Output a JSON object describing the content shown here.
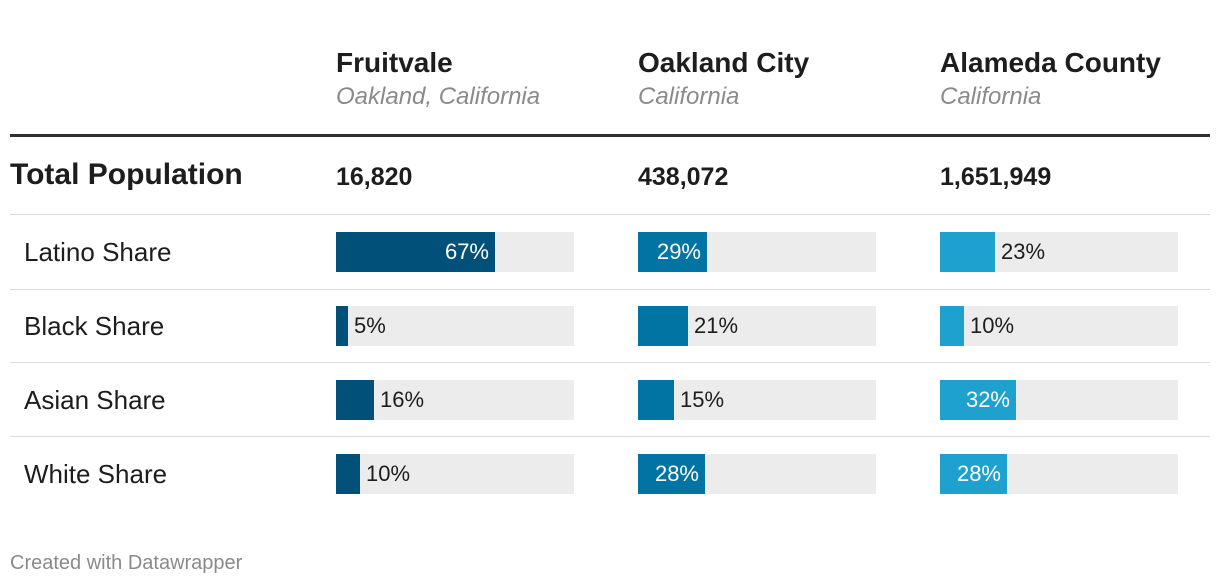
{
  "colors": {
    "fruitvale": "#00507a",
    "oakland": "#0274a4",
    "alameda": "#1fa1cf",
    "track": "#ececec"
  },
  "columns": [
    {
      "name": "Fruitvale",
      "sub": "Oakland, California",
      "population": "16,820"
    },
    {
      "name": "Oakland City",
      "sub": "California",
      "population": "438,072"
    },
    {
      "name": "Alameda County",
      "sub": "California",
      "population": "1,651,949"
    }
  ],
  "total_label": "Total Population",
  "footer": "Created with Datawrapper",
  "chart_data": {
    "type": "table",
    "title": "",
    "x_range": [
      0,
      100
    ],
    "unit": "%",
    "categories": [
      "Latino Share",
      "Black Share",
      "Asian Share",
      "White Share"
    ],
    "series": [
      {
        "name": "Fruitvale",
        "values": [
          67,
          5,
          16,
          10
        ],
        "labels": [
          "67%",
          "5%",
          "16%",
          "10%"
        ]
      },
      {
        "name": "Oakland City",
        "values": [
          29,
          21,
          15,
          28
        ],
        "labels": [
          "29%",
          "21%",
          "15%",
          "28%"
        ]
      },
      {
        "name": "Alameda County",
        "values": [
          23,
          10,
          32,
          28
        ],
        "labels": [
          "23%",
          "10%",
          "32%",
          "28%"
        ]
      }
    ]
  }
}
